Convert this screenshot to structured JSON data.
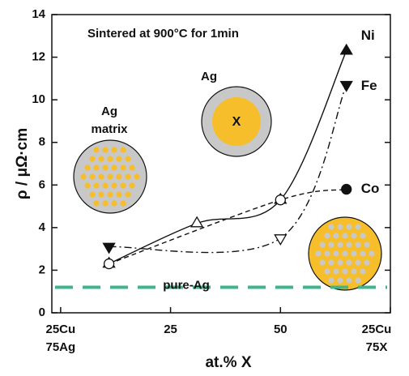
{
  "chart_data": {
    "type": "line",
    "ylabel": "ρ / μΩ·cm",
    "xlabel": "at.% X",
    "xlim": [
      -2,
      75
    ],
    "ylim": [
      0,
      14
    ],
    "xticks": [
      {
        "value": 0,
        "label": "25Cu\n75Ag"
      },
      25,
      50,
      {
        "value": 75,
        "label": "25Cu\n75X"
      }
    ],
    "yticks": [
      0,
      2,
      4,
      6,
      8,
      10,
      12,
      14
    ],
    "series": [
      {
        "name": "Ni",
        "color": "#111111",
        "dash": "solid",
        "marker": "triangle-up",
        "x": [
          11,
          31,
          50,
          65
        ],
        "values": [
          2.3,
          4.2,
          5.3,
          12.3
        ],
        "filled": [
          false,
          false,
          false,
          true
        ]
      },
      {
        "name": "Fe",
        "color": "#111111",
        "dash": "dashdot",
        "marker": "triangle-down",
        "x": [
          11,
          50,
          65
        ],
        "values": [
          3.1,
          3.5,
          10.7
        ],
        "filled": [
          true,
          false,
          true
        ]
      },
      {
        "name": "Co",
        "color": "#111111",
        "dash": "dashed",
        "marker": "circle",
        "x": [
          11,
          50,
          65
        ],
        "values": [
          2.3,
          5.3,
          5.8
        ],
        "filled": [
          false,
          false,
          true
        ]
      }
    ],
    "reference_line": {
      "label": "pure-Ag",
      "value": 1.2,
      "color": "#3fb58f"
    },
    "annotations": {
      "condition": "Sintered at 900°C for 1min",
      "shell": "Ag",
      "core": "X",
      "matrix": "Ag\nmatrix"
    }
  }
}
